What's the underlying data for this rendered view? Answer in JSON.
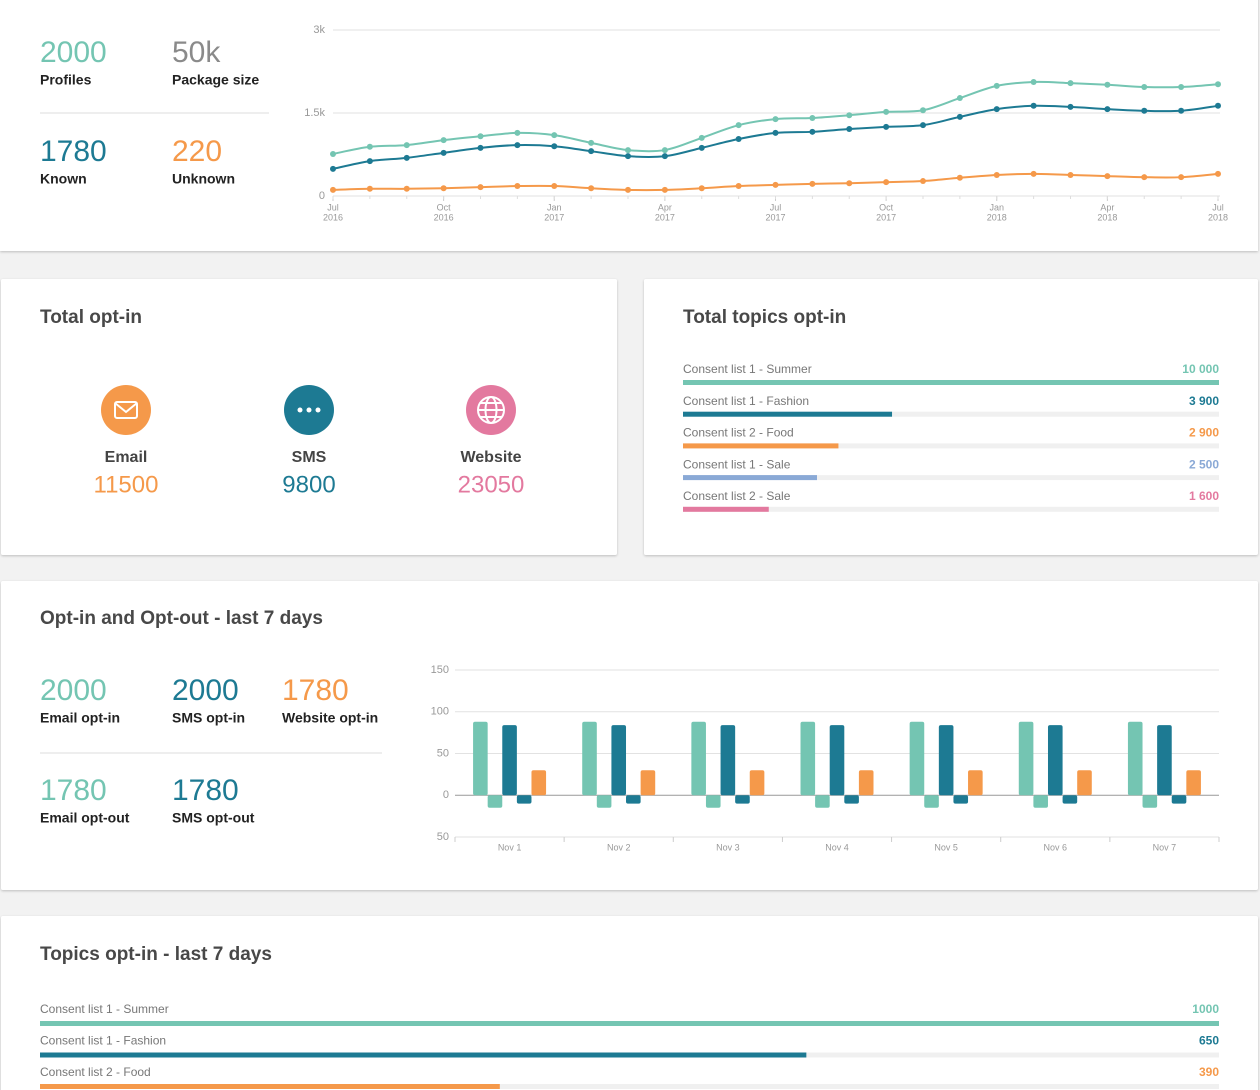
{
  "summary": {
    "stats": [
      {
        "value": 2000,
        "label": "Profiles",
        "color": "#74c5b2"
      },
      {
        "value": "50k",
        "label": "Package size",
        "color": "#8a8a8a"
      },
      {
        "value": 1780,
        "label": "Known",
        "color": "#1d7a93"
      },
      {
        "value": 220,
        "label": "Unknown",
        "color": "#f5994a"
      }
    ]
  },
  "trend_chart": {
    "type": "line",
    "x": [
      "2016-07",
      "2016-08",
      "2016-09",
      "2016-10",
      "2016-11",
      "2016-12",
      "2017-01",
      "2017-02",
      "2017-03",
      "2017-04",
      "2017-05",
      "2017-06",
      "2017-07",
      "2017-08",
      "2017-09",
      "2017-10",
      "2017-11",
      "2017-12",
      "2018-01",
      "2018-02",
      "2018-03",
      "2018-04",
      "2018-05",
      "2018-06",
      "2018-07"
    ],
    "xticks": [
      {
        "value": "2016-07",
        "label": [
          "Jul",
          "2016"
        ]
      },
      {
        "value": "2016-10",
        "label": [
          "Oct",
          "2016"
        ]
      },
      {
        "value": "2017-01",
        "label": [
          "Jan",
          "2017"
        ]
      },
      {
        "value": "2017-04",
        "label": [
          "Apr",
          "2017"
        ]
      },
      {
        "value": "2017-07",
        "label": [
          "Jul",
          "2017"
        ]
      },
      {
        "value": "2017-10",
        "label": [
          "Oct",
          "2017"
        ]
      },
      {
        "value": "2018-01",
        "label": [
          "Jan",
          "2018"
        ]
      },
      {
        "value": "2018-04",
        "label": [
          "Apr",
          "2018"
        ]
      },
      {
        "value": "2018-07",
        "label": [
          "Jul",
          "2018"
        ]
      }
    ],
    "ylim": [
      0,
      3000
    ],
    "yticks": [
      0,
      {
        "value": 1500,
        "label": "1.5k"
      },
      {
        "value": 3000,
        "label": "3k"
      }
    ],
    "grid": true,
    "series": [
      {
        "color": "#74c5b2",
        "values": [
          760,
          890,
          920,
          1010,
          1080,
          1140,
          1100,
          960,
          830,
          830,
          1050,
          1280,
          1390,
          1410,
          1460,
          1520,
          1550,
          1770,
          1990,
          2060,
          2040,
          2010,
          1970,
          1970,
          2020
        ]
      },
      {
        "color": "#1d7a93",
        "values": [
          490,
          630,
          690,
          780,
          870,
          920,
          900,
          810,
          720,
          720,
          870,
          1030,
          1140,
          1160,
          1210,
          1250,
          1280,
          1430,
          1570,
          1630,
          1610,
          1570,
          1540,
          1540,
          1630
        ]
      },
      {
        "color": "#f5994a",
        "values": [
          110,
          130,
          130,
          140,
          160,
          180,
          180,
          140,
          110,
          110,
          140,
          180,
          200,
          220,
          230,
          250,
          270,
          330,
          380,
          400,
          380,
          360,
          340,
          340,
          400
        ]
      }
    ]
  },
  "total_optin": {
    "title": "Total opt-in",
    "channels": [
      {
        "name": "Email",
        "value": 11500,
        "color": "#f5994a"
      },
      {
        "name": "SMS",
        "value": 9800,
        "color": "#1d7a93"
      },
      {
        "name": "Website",
        "value": 23050,
        "color": "#e3799f"
      }
    ]
  },
  "topics_total": {
    "title": "Total topics opt-in",
    "type": "bar",
    "xlim": [
      0,
      10000
    ],
    "items": [
      {
        "name": "Consent list 1 - Summer",
        "value": 10000,
        "value_label": "10 000",
        "color": "#74c5b2"
      },
      {
        "name": "Consent list 1 - Fashion",
        "value": 3900,
        "value_label": "3 900",
        "color": "#1d7a93"
      },
      {
        "name": "Consent list 2 - Food",
        "value": 2900,
        "value_label": "2 900",
        "color": "#f5994a"
      },
      {
        "name": "Consent list 1 - Sale",
        "value": 2500,
        "value_label": "2 500",
        "color": "#8aa9d6"
      },
      {
        "name": "Consent list 2 - Sale",
        "value": 1600,
        "value_label": "1 600",
        "color": "#e3799f"
      }
    ]
  },
  "weekly": {
    "title": "Opt-in and Opt-out - last 7 days",
    "stats": [
      {
        "value": 2000,
        "label": "Email opt-in",
        "color": "#74c5b2"
      },
      {
        "value": 2000,
        "label": "SMS opt-in",
        "color": "#1d7a93"
      },
      {
        "value": 1780,
        "label": "Website opt-in",
        "color": "#f5994a"
      },
      {
        "value": 1780,
        "label": "Email opt-out",
        "color": "#74c5b2"
      },
      {
        "value": 1780,
        "label": "SMS opt-out",
        "color": "#1d7a93"
      }
    ],
    "chart": {
      "type": "bar",
      "categories": [
        "Nov 1",
        "Nov 2",
        "Nov 3",
        "Nov 4",
        "Nov 5",
        "Nov 6",
        "Nov 7"
      ],
      "ylim": [
        -50,
        150
      ],
      "yticks": [
        {
          "value": -50,
          "label": "50"
        },
        0,
        50,
        100,
        150
      ],
      "grid": true,
      "series": [
        {
          "color": "#74c5b2",
          "values": [
            88,
            88,
            88,
            88,
            88,
            88,
            88
          ]
        },
        {
          "color": "#74c5b2",
          "values": [
            -15,
            -15,
            -15,
            -15,
            -15,
            -15,
            -15
          ]
        },
        {
          "color": "#1d7a93",
          "values": [
            84,
            84,
            84,
            84,
            84,
            84,
            84
          ]
        },
        {
          "color": "#1d7a93",
          "values": [
            -10,
            -10,
            -10,
            -10,
            -10,
            -10,
            -10
          ]
        },
        {
          "color": "#f5994a",
          "values": [
            30,
            30,
            30,
            30,
            30,
            30,
            30
          ]
        }
      ]
    }
  },
  "topics_weekly": {
    "title": "Topics opt-in - last 7 days",
    "type": "bar",
    "xlim": [
      0,
      1000
    ],
    "items": [
      {
        "name": "Consent list 1 - Summer",
        "value": 1000,
        "color": "#74c5b2"
      },
      {
        "name": "Consent list 1 - Fashion",
        "value": 650,
        "color": "#1d7a93"
      },
      {
        "name": "Consent list 2 - Food",
        "value": 390,
        "color": "#f5994a"
      }
    ]
  }
}
